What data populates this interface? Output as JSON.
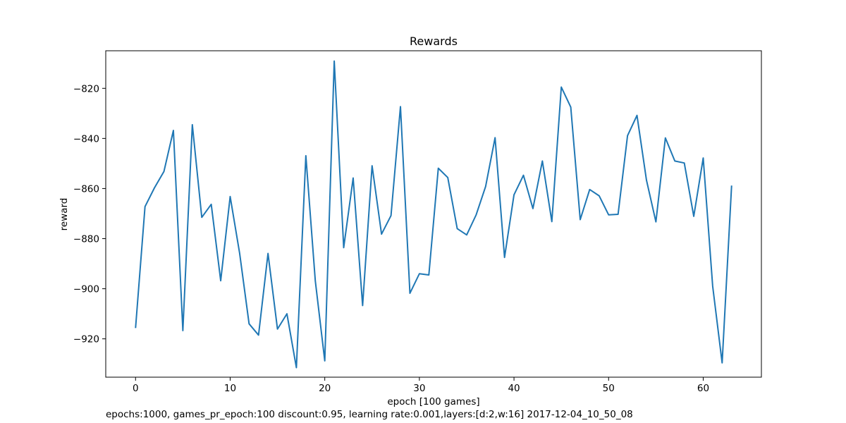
{
  "chart_data": {
    "type": "line",
    "title": "Rewards",
    "xlabel": "epoch [100 games]",
    "ylabel": "reward",
    "xlim": [
      -3.15,
      66.15
    ],
    "ylim": [
      -935.3,
      -805.0
    ],
    "xticks": [
      0,
      10,
      20,
      30,
      40,
      50,
      60
    ],
    "yticks": [
      -920,
      -900,
      -880,
      -860,
      -840,
      -820
    ],
    "grid": false,
    "series": [
      {
        "color": "#1f77b4",
        "x": [
          0,
          1,
          2,
          3,
          4,
          5,
          6,
          7,
          8,
          9,
          10,
          11,
          12,
          13,
          14,
          15,
          16,
          17,
          18,
          19,
          20,
          21,
          22,
          23,
          24,
          25,
          26,
          27,
          28,
          29,
          30,
          31,
          32,
          33,
          34,
          35,
          36,
          37,
          38,
          39,
          40,
          41,
          42,
          43,
          44,
          45,
          46,
          47,
          48,
          49,
          50,
          51,
          52,
          53,
          54,
          55,
          56,
          57,
          58,
          59,
          60,
          61,
          62,
          63
        ],
        "values": [
          -915.7,
          -867.2,
          -859.7,
          -853.2,
          -836.8,
          -916.7,
          -834.5,
          -871.5,
          -866.3,
          -896.8,
          -863.2,
          -885.8,
          -914.0,
          -918.5,
          -885.9,
          -916.1,
          -910.0,
          -931.5,
          -846.9,
          -896.9,
          -928.8,
          -809.1,
          -883.6,
          -855.8,
          -906.7,
          -850.9,
          -878.2,
          -870.8,
          -827.3,
          -901.8,
          -894.0,
          -894.5,
          -851.9,
          -855.6,
          -876.0,
          -878.5,
          -870.5,
          -859.2,
          -839.7,
          -887.5,
          -862.5,
          -854.7,
          -868.0,
          -849.0,
          -873.2,
          -819.5,
          -827.5,
          -872.4,
          -860.4,
          -862.9,
          -870.5,
          -870.3,
          -838.9,
          -830.8,
          -856.6,
          -873.3,
          -839.8,
          -849.0,
          -849.8,
          -871.1,
          -847.8,
          -899.0,
          -929.6,
          -858.8
        ]
      }
    ]
  },
  "footer": "epochs:1000, games_pr_epoch:100 discount:0.95, learning rate:0.001,layers:[d:2,w:16] 2017-12-04_10_50_08"
}
